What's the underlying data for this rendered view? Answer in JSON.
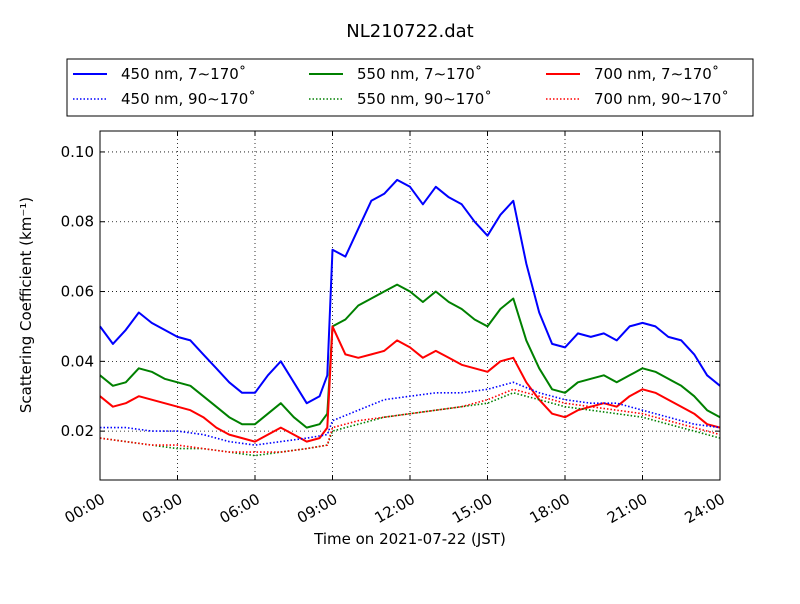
{
  "chart_data": {
    "type": "line",
    "title": "NL210722.dat",
    "xlabel": "Time on 2021-07-22 (JST)",
    "ylabel": "Scattering Coefficient (km⁻¹)",
    "xlim": [
      0,
      24
    ],
    "ylim": [
      0.006,
      0.106
    ],
    "x_ticks": [
      0,
      3,
      6,
      9,
      12,
      15,
      18,
      21,
      24
    ],
    "x_tick_labels": [
      "00:00",
      "03:00",
      "06:00",
      "09:00",
      "12:00",
      "15:00",
      "18:00",
      "21:00",
      "24:00"
    ],
    "y_ticks": [
      0.02,
      0.04,
      0.06,
      0.08,
      0.1
    ],
    "y_tick_labels": [
      "0.02",
      "0.04",
      "0.06",
      "0.08",
      "0.10"
    ],
    "grid": true,
    "legend_position": "top",
    "series": [
      {
        "name": "450 nm, 7∼170˚",
        "color": "#0000ff",
        "style": "solid",
        "x": [
          0,
          0.5,
          1,
          1.5,
          2,
          2.5,
          3,
          3.5,
          4,
          4.5,
          5,
          5.5,
          6,
          6.5,
          7,
          7.5,
          8,
          8.5,
          8.8,
          9,
          9.5,
          10,
          10.5,
          11,
          11.5,
          12,
          12.5,
          13,
          13.5,
          14,
          14.5,
          15,
          15.5,
          16,
          16.5,
          17,
          17.5,
          18,
          18.5,
          19,
          19.5,
          20,
          20.5,
          21,
          21.5,
          22,
          22.5,
          23,
          23.5,
          24
        ],
        "y": [
          0.05,
          0.045,
          0.049,
          0.054,
          0.051,
          0.049,
          0.047,
          0.046,
          0.042,
          0.038,
          0.034,
          0.031,
          0.031,
          0.036,
          0.04,
          0.034,
          0.028,
          0.03,
          0.036,
          0.072,
          0.07,
          0.078,
          0.086,
          0.088,
          0.092,
          0.09,
          0.085,
          0.09,
          0.087,
          0.085,
          0.08,
          0.076,
          0.082,
          0.086,
          0.068,
          0.054,
          0.045,
          0.044,
          0.048,
          0.047,
          0.048,
          0.046,
          0.05,
          0.051,
          0.05,
          0.047,
          0.046,
          0.042,
          0.036,
          0.033
        ]
      },
      {
        "name": "450 nm, 90∼170˚",
        "color": "#0000ff",
        "style": "dotted",
        "x": [
          0,
          1,
          2,
          3,
          4,
          5,
          6,
          7,
          8,
          8.8,
          9,
          10,
          11,
          12,
          13,
          14,
          15,
          16,
          17,
          18,
          19,
          20,
          21,
          22,
          23,
          24
        ],
        "y": [
          0.021,
          0.021,
          0.02,
          0.02,
          0.019,
          0.017,
          0.016,
          0.017,
          0.018,
          0.019,
          0.023,
          0.026,
          0.029,
          0.03,
          0.031,
          0.031,
          0.032,
          0.034,
          0.031,
          0.029,
          0.028,
          0.028,
          0.026,
          0.024,
          0.022,
          0.021
        ]
      },
      {
        "name": "550 nm, 7∼170˚",
        "color": "#008000",
        "style": "solid",
        "x": [
          0,
          0.5,
          1,
          1.5,
          2,
          2.5,
          3,
          3.5,
          4,
          4.5,
          5,
          5.5,
          6,
          6.5,
          7,
          7.5,
          8,
          8.5,
          8.8,
          9,
          9.5,
          10,
          10.5,
          11,
          11.5,
          12,
          12.5,
          13,
          13.5,
          14,
          14.5,
          15,
          15.5,
          16,
          16.5,
          17,
          17.5,
          18,
          18.5,
          19,
          19.5,
          20,
          20.5,
          21,
          21.5,
          22,
          22.5,
          23,
          23.5,
          24
        ],
        "y": [
          0.036,
          0.033,
          0.034,
          0.038,
          0.037,
          0.035,
          0.034,
          0.033,
          0.03,
          0.027,
          0.024,
          0.022,
          0.022,
          0.025,
          0.028,
          0.024,
          0.021,
          0.022,
          0.025,
          0.05,
          0.052,
          0.056,
          0.058,
          0.06,
          0.062,
          0.06,
          0.057,
          0.06,
          0.057,
          0.055,
          0.052,
          0.05,
          0.055,
          0.058,
          0.046,
          0.038,
          0.032,
          0.031,
          0.034,
          0.035,
          0.036,
          0.034,
          0.036,
          0.038,
          0.037,
          0.035,
          0.033,
          0.03,
          0.026,
          0.024
        ]
      },
      {
        "name": "550 nm, 90∼170˚",
        "color": "#008000",
        "style": "dotted",
        "x": [
          0,
          1,
          2,
          3,
          4,
          5,
          6,
          7,
          8,
          8.8,
          9,
          10,
          11,
          12,
          13,
          14,
          15,
          16,
          17,
          18,
          19,
          20,
          21,
          22,
          23,
          24
        ],
        "y": [
          0.018,
          0.017,
          0.016,
          0.015,
          0.015,
          0.014,
          0.013,
          0.014,
          0.015,
          0.016,
          0.02,
          0.022,
          0.024,
          0.025,
          0.026,
          0.027,
          0.028,
          0.031,
          0.029,
          0.027,
          0.026,
          0.025,
          0.024,
          0.022,
          0.02,
          0.018
        ]
      },
      {
        "name": "700 nm, 7∼170˚",
        "color": "#ff0000",
        "style": "solid",
        "x": [
          0,
          0.5,
          1,
          1.5,
          2,
          2.5,
          3,
          3.5,
          4,
          4.5,
          5,
          5.5,
          6,
          6.5,
          7,
          7.5,
          8,
          8.5,
          8.8,
          9,
          9.5,
          10,
          10.5,
          11,
          11.5,
          12,
          12.5,
          13,
          13.5,
          14,
          14.5,
          15,
          15.5,
          16,
          16.5,
          17,
          17.5,
          18,
          18.5,
          19,
          19.5,
          20,
          20.5,
          21,
          21.5,
          22,
          22.5,
          23,
          23.5,
          24
        ],
        "y": [
          0.03,
          0.027,
          0.028,
          0.03,
          0.029,
          0.028,
          0.027,
          0.026,
          0.024,
          0.021,
          0.019,
          0.018,
          0.017,
          0.019,
          0.021,
          0.019,
          0.017,
          0.018,
          0.021,
          0.05,
          0.042,
          0.041,
          0.042,
          0.043,
          0.046,
          0.044,
          0.041,
          0.043,
          0.041,
          0.039,
          0.038,
          0.037,
          0.04,
          0.041,
          0.034,
          0.029,
          0.025,
          0.024,
          0.026,
          0.027,
          0.028,
          0.027,
          0.03,
          0.032,
          0.031,
          0.029,
          0.027,
          0.025,
          0.022,
          0.021
        ]
      },
      {
        "name": "700 nm, 90∼170˚",
        "color": "#ff0000",
        "style": "dotted",
        "x": [
          0,
          1,
          2,
          3,
          4,
          5,
          6,
          7,
          8,
          8.8,
          9,
          10,
          11,
          12,
          13,
          14,
          15,
          16,
          17,
          18,
          19,
          20,
          21,
          22,
          23,
          24
        ],
        "y": [
          0.018,
          0.017,
          0.016,
          0.016,
          0.015,
          0.014,
          0.014,
          0.014,
          0.015,
          0.016,
          0.021,
          0.023,
          0.024,
          0.025,
          0.026,
          0.027,
          0.029,
          0.032,
          0.03,
          0.028,
          0.027,
          0.026,
          0.025,
          0.023,
          0.021,
          0.019
        ]
      }
    ]
  }
}
